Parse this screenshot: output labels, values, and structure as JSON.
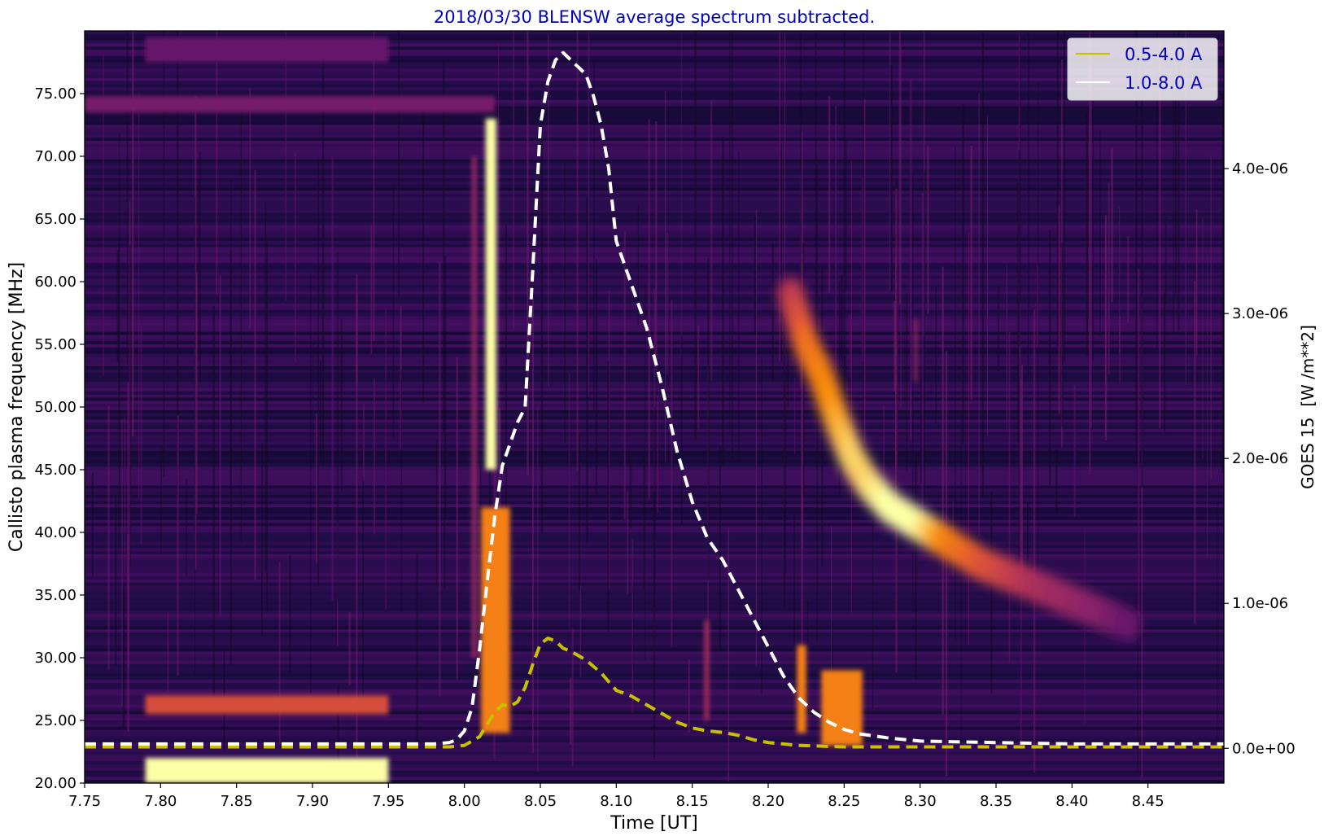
{
  "chart_data": {
    "type": "heatmap",
    "title": "2018/03/30 BLENSW average spectrum subtracted.",
    "xlabel": "Time [UT]",
    "ylabel": "Callisto plasma frequency [MHz]",
    "y2label": "GOES 15  [W /m**2]",
    "xlim": [
      7.75,
      8.5
    ],
    "ylim": [
      20.0,
      80.0
    ],
    "y2lim": [
      -2.4e-07,
      4.95e-06
    ],
    "x_ticks": [
      7.75,
      7.8,
      7.85,
      7.9,
      7.95,
      8.0,
      8.05,
      8.1,
      8.15,
      8.2,
      8.25,
      8.3,
      8.35,
      8.4,
      8.45
    ],
    "x_tick_labels": [
      "7.75",
      "7.80",
      "7.85",
      "7.90",
      "7.95",
      "8.00",
      "8.05",
      "8.10",
      "8.15",
      "8.20",
      "8.25",
      "8.30",
      "8.35",
      "8.40",
      "8.45"
    ],
    "y_ticks": [
      20,
      25,
      30,
      35,
      40,
      45,
      50,
      55,
      60,
      65,
      70,
      75
    ],
    "y_tick_labels": [
      "20.00",
      "25.00",
      "30.00",
      "35.00",
      "40.00",
      "45.00",
      "50.00",
      "55.00",
      "60.00",
      "65.00",
      "70.00",
      "75.00"
    ],
    "y2_ticks": [
      0,
      1e-06,
      2e-06,
      3e-06,
      4e-06
    ],
    "y2_tick_labels": [
      "0.0e+00",
      "1.0e-06",
      "2.0e-06",
      "3.0e-06",
      "4.0e-06"
    ],
    "colormap": "inferno",
    "legend_position": "top-right",
    "legend_text_color": "#0000c0",
    "title_color": "#0000c0",
    "series": [
      {
        "name": "0.5-4.0 A",
        "color": "#c8c000",
        "style": "dashed",
        "x": [
          7.75,
          7.99,
          8.0,
          8.01,
          8.02,
          8.025,
          8.03,
          8.035,
          8.04,
          8.045,
          8.05,
          8.055,
          8.06,
          8.065,
          8.07,
          8.08,
          8.09,
          8.1,
          8.11,
          8.12,
          8.13,
          8.14,
          8.15,
          8.16,
          8.17,
          8.18,
          8.19,
          8.2,
          8.22,
          8.25,
          8.3,
          8.5
        ],
        "y": [
          1e-08,
          1e-08,
          2e-08,
          8e-08,
          2.5e-07,
          3e-07,
          2.9e-07,
          3.2e-07,
          4.2e-07,
          5.8e-07,
          7.2e-07,
          7.6e-07,
          7.4e-07,
          6.9e-07,
          6.7e-07,
          6.1e-07,
          5.2e-07,
          4e-07,
          3.6e-07,
          3e-07,
          2.4e-07,
          1.8e-07,
          1.4e-07,
          1.2e-07,
          1.1e-07,
          9e-08,
          6e-08,
          4e-08,
          2e-08,
          1e-08,
          1e-08,
          1e-08
        ]
      },
      {
        "name": "1.0-8.0 A",
        "color": "#ffffff",
        "style": "dashed",
        "x": [
          7.75,
          7.98,
          7.99,
          7.995,
          8.0,
          8.005,
          8.01,
          8.015,
          8.02,
          8.025,
          8.03,
          8.035,
          8.04,
          8.045,
          8.05,
          8.055,
          8.06,
          8.065,
          8.07,
          8.075,
          8.08,
          8.085,
          8.09,
          8.095,
          8.1,
          8.11,
          8.12,
          8.13,
          8.14,
          8.15,
          8.16,
          8.17,
          8.18,
          8.19,
          8.2,
          8.21,
          8.22,
          8.23,
          8.24,
          8.25,
          8.26,
          8.28,
          8.3,
          8.35,
          8.4,
          8.5
        ],
        "y": [
          3e-08,
          3e-08,
          4e-08,
          6e-08,
          1.2e-07,
          2.8e-07,
          6.8e-07,
          1.15e-06,
          1.6e-06,
          1.95e-06,
          2.1e-06,
          2.25e-06,
          2.35e-06,
          3.3e-06,
          4.3e-06,
          4.6e-06,
          4.75e-06,
          4.8e-06,
          4.75e-06,
          4.7e-06,
          4.65e-06,
          4.5e-06,
          4.3e-06,
          4e-06,
          3.5e-06,
          3.2e-06,
          2.9e-06,
          2.5e-06,
          2.05e-06,
          1.7e-06,
          1.45e-06,
          1.3e-06,
          1.1e-06,
          9e-07,
          7e-07,
          5e-07,
          3.5e-07,
          2.5e-07,
          1.8e-07,
          1.3e-07,
          1e-07,
          7e-08,
          5e-08,
          4e-08,
          3e-08,
          3e-08
        ]
      }
    ],
    "heatmap_features": {
      "background_intensity": 0.18,
      "bright_patches": [
        {
          "x": [
            7.79,
            7.95
          ],
          "y": [
            20.0,
            22.0
          ],
          "intensity": 1.0
        },
        {
          "x": [
            7.79,
            7.95
          ],
          "y": [
            25.5,
            27.0
          ],
          "intensity": 0.7
        },
        {
          "x": [
            7.79,
            7.95
          ],
          "y": [
            77.5,
            79.5
          ],
          "intensity": 0.35
        },
        {
          "x": [
            7.75,
            8.02
          ],
          "y": [
            73.5,
            74.8
          ],
          "intensity": 0.4
        },
        {
          "x": [
            8.014,
            8.021
          ],
          "y": [
            45.0,
            73.0
          ],
          "intensity": 1.0
        },
        {
          "x": [
            8.011,
            8.03
          ],
          "y": [
            24.0,
            42.0
          ],
          "intensity": 0.85
        },
        {
          "x": [
            8.005,
            8.008
          ],
          "y": [
            30.0,
            70.0
          ],
          "intensity": 0.5
        },
        {
          "x": [
            8.219,
            8.225
          ],
          "y": [
            24.0,
            31.0
          ],
          "intensity": 0.85
        },
        {
          "x": [
            8.235,
            8.262
          ],
          "y": [
            23.0,
            29.0
          ],
          "intensity": 0.85
        },
        {
          "x": [
            8.158,
            8.161
          ],
          "y": [
            25.0,
            33.0
          ],
          "intensity": 0.55
        },
        {
          "x": [
            8.296,
            8.298
          ],
          "y": [
            52.0,
            57.0
          ],
          "intensity": 0.5
        }
      ],
      "drifting_burst": {
        "x": [
          8.215,
          8.225,
          8.235,
          8.245,
          8.255,
          8.265,
          8.28,
          8.3,
          8.32,
          8.34,
          8.36,
          8.38,
          8.4,
          8.42,
          8.44
        ],
        "y": [
          59.0,
          55.0,
          52.5,
          49.0,
          46.0,
          44.0,
          42.0,
          40.5,
          39.0,
          37.5,
          36.5,
          35.5,
          34.5,
          33.5,
          32.5
        ],
        "intensity": [
          0.6,
          0.8,
          0.85,
          0.9,
          0.95,
          0.95,
          1.0,
          1.0,
          0.85,
          0.75,
          0.65,
          0.55,
          0.5,
          0.45,
          0.35
        ]
      }
    }
  }
}
